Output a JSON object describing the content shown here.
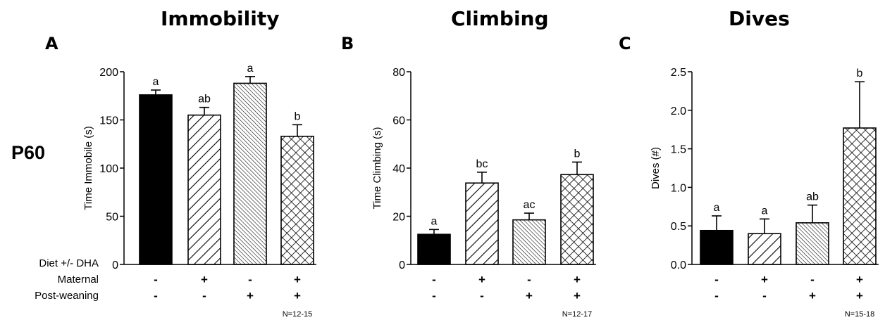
{
  "row_label": "P60",
  "factor_labels": {
    "diet": "Diet +/- DHA",
    "maternal": "Maternal",
    "post_weaning": "Post-weaning"
  },
  "groups": [
    {
      "maternal": "-",
      "post_weaning": "-",
      "pattern": "solid"
    },
    {
      "maternal": "+",
      "post_weaning": "-",
      "pattern": "wide-diagonal"
    },
    {
      "maternal": "-",
      "post_weaning": "+",
      "pattern": "fine-diagonal"
    },
    {
      "maternal": "+",
      "post_weaning": "+",
      "pattern": "crosshatch"
    }
  ],
  "chart_data": [
    {
      "type": "bar",
      "panel_letter": "A",
      "title": "Immobility",
      "ylabel": "Time Immobile (s)",
      "ylim": [
        0,
        200
      ],
      "yticks": [
        0,
        50,
        100,
        150,
        200
      ],
      "values": [
        176,
        155,
        188,
        133
      ],
      "errors": [
        5,
        8,
        7,
        12
      ],
      "significance_letters": [
        "a",
        "ab",
        "a",
        "b"
      ],
      "n_note": "N=12-15"
    },
    {
      "type": "bar",
      "panel_letter": "B",
      "title": "Climbing",
      "ylabel": "Time Climbing (s)",
      "ylim": [
        0,
        80
      ],
      "yticks": [
        0,
        20,
        40,
        60,
        80
      ],
      "values": [
        12.5,
        33.8,
        18.5,
        37.3
      ],
      "errors": [
        2,
        4.5,
        2.8,
        5.2
      ],
      "significance_letters": [
        "a",
        "bc",
        "ac",
        "b"
      ],
      "n_note": "N=12-17"
    },
    {
      "type": "bar",
      "panel_letter": "C",
      "title": "Dives",
      "ylabel": "Dives (#)",
      "ylim": [
        0,
        2.5
      ],
      "yticks": [
        "0.0",
        "0.5",
        "1.0",
        "1.5",
        "2.0",
        "2.5"
      ],
      "values": [
        0.44,
        0.4,
        0.54,
        1.77
      ],
      "errors": [
        0.19,
        0.19,
        0.23,
        0.6
      ],
      "significance_letters": [
        "a",
        "a",
        "ab",
        "b"
      ],
      "n_note": "N=15-18"
    }
  ]
}
